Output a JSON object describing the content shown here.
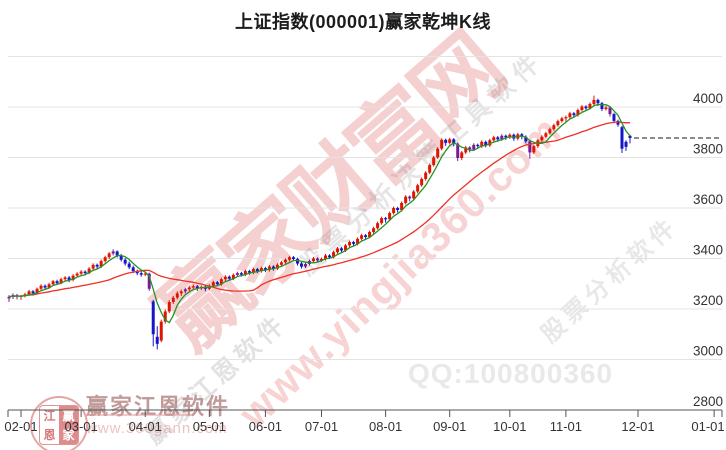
{
  "title": "上证指数(000001)赢家乾坤K线",
  "watermarks": {
    "brand_large": "赢家财富网",
    "site_url": "www.yingjia360.com",
    "qq": "QQ:100800360",
    "gray_line_1": "赢家江恩软件",
    "gray_line_2": "股票分析决策工具软件",
    "gray_line_3": "股票分析软件",
    "footer_logo_text": "赢家江恩软件",
    "footer_logo_url": "www.360gann.com",
    "seal_chars": [
      "江",
      "赢",
      "恩",
      "家"
    ]
  },
  "chart_data": {
    "type": "candlestick",
    "title": "上证指数(000001)赢家乾坤K线",
    "symbol": "000001",
    "ylim": [
      2800,
      4214
    ],
    "y_axis": {
      "tick_labels": [
        "4000",
        "3800",
        "3600",
        "3400",
        "3200",
        "3000",
        "2800"
      ],
      "tick_values": [
        4000,
        3800,
        3600,
        3400,
        3200,
        3000,
        2800
      ],
      "gridline_values": [
        4200,
        4000,
        3800,
        3600,
        3400,
        3200,
        3000
      ]
    },
    "x_axis": {
      "ticks": [
        {
          "label": "02-01",
          "i": 3
        },
        {
          "label": "03-01",
          "i": 18
        },
        {
          "label": "04-01",
          "i": 34
        },
        {
          "label": "05-01",
          "i": 50
        },
        {
          "label": "06-01",
          "i": 64
        },
        {
          "label": "07-01",
          "i": 78
        },
        {
          "label": "08-01",
          "i": 94
        },
        {
          "label": "09-01",
          "i": 110
        },
        {
          "label": "10-01",
          "i": 125
        },
        {
          "label": "11-01",
          "i": 139
        },
        {
          "label": "12-01",
          "i": 157
        },
        {
          "label": "01-01",
          "i": 176
        }
      ]
    },
    "last_price_line": 3877,
    "ma_short_period": 5,
    "ma_long_period": 26,
    "colors": {
      "up": "#e01400",
      "down": "#1616c8",
      "special": "#7a1b96",
      "ma_short": "#269326",
      "ma_long": "#f03024",
      "gridline": "#e3e3e3",
      "axis": "#555555",
      "label": "#333333",
      "last_price_dash": "#1a1a1a"
    },
    "candles": [
      [
        3242,
        3255,
        3228,
        3248,
        1
      ],
      [
        3248,
        3262,
        3240,
        3255,
        1
      ],
      [
        3255,
        3260,
        3238,
        3250,
        1
      ],
      [
        3250,
        3256,
        3236,
        3252
      ],
      [
        3252,
        3264,
        3246,
        3258
      ],
      [
        3258,
        3276,
        3252,
        3270
      ],
      [
        3270,
        3275,
        3253,
        3262
      ],
      [
        3262,
        3285,
        3258,
        3280
      ],
      [
        3280,
        3298,
        3274,
        3292
      ],
      [
        3292,
        3297,
        3276,
        3285
      ],
      [
        3285,
        3304,
        3280,
        3298
      ],
      [
        3298,
        3315,
        3292,
        3310
      ],
      [
        3310,
        3316,
        3295,
        3302
      ],
      [
        3302,
        3324,
        3298,
        3318
      ],
      [
        3318,
        3330,
        3310,
        3325
      ],
      [
        3325,
        3331,
        3306,
        3315
      ],
      [
        3315,
        3338,
        3310,
        3332
      ],
      [
        3332,
        3346,
        3325,
        3340
      ],
      [
        3340,
        3354,
        3332,
        3348
      ],
      [
        3348,
        3353,
        3334,
        3342
      ],
      [
        3342,
        3366,
        3338,
        3360
      ],
      [
        3360,
        3381,
        3354,
        3375
      ],
      [
        3375,
        3380,
        3358,
        3368
      ],
      [
        3368,
        3396,
        3362,
        3390
      ],
      [
        3390,
        3411,
        3384,
        3405
      ],
      [
        3405,
        3426,
        3398,
        3420
      ],
      [
        3420,
        3436,
        3412,
        3428,
        1
      ],
      [
        3428,
        3432,
        3404,
        3412
      ],
      [
        3412,
        3418,
        3388,
        3395
      ],
      [
        3395,
        3402,
        3372,
        3380
      ],
      [
        3380,
        3388,
        3358,
        3365
      ],
      [
        3365,
        3372,
        3342,
        3350
      ],
      [
        3350,
        3356,
        3334,
        3342
      ],
      [
        3342,
        3350,
        3328,
        3336
      ],
      [
        3336,
        3348,
        3330,
        3340
      ],
      [
        3340,
        3344,
        3272,
        3280,
        1
      ],
      [
        3230,
        3236,
        3052,
        3100
      ],
      [
        3090,
        3132,
        3040,
        3062
      ],
      [
        3075,
        3158,
        3068,
        3150
      ],
      [
        3150,
        3198,
        3142,
        3190
      ],
      [
        3190,
        3235,
        3184,
        3228
      ],
      [
        3228,
        3252,
        3220,
        3245
      ],
      [
        3245,
        3270,
        3238,
        3262
      ],
      [
        3262,
        3277,
        3252,
        3270
      ],
      [
        3270,
        3284,
        3262,
        3278,
        1
      ],
      [
        3278,
        3292,
        3270,
        3285
      ],
      [
        3285,
        3297,
        3278,
        3290
      ],
      [
        3290,
        3295,
        3272,
        3282
      ],
      [
        3282,
        3294,
        3275,
        3288
      ],
      [
        3288,
        3293,
        3270,
        3280
      ],
      [
        3280,
        3298,
        3274,
        3292
      ],
      [
        3292,
        3312,
        3286,
        3306
      ],
      [
        3306,
        3311,
        3290,
        3298
      ],
      [
        3298,
        3324,
        3292,
        3318
      ],
      [
        3318,
        3334,
        3310,
        3328
      ],
      [
        3328,
        3333,
        3312,
        3320
      ],
      [
        3320,
        3341,
        3314,
        3335
      ],
      [
        3335,
        3348,
        3328,
        3342,
        1
      ],
      [
        3342,
        3347,
        3328,
        3336
      ],
      [
        3336,
        3356,
        3330,
        3350
      ],
      [
        3350,
        3355,
        3336,
        3344
      ],
      [
        3344,
        3364,
        3338,
        3358
      ],
      [
        3358,
        3363,
        3342,
        3350
      ],
      [
        3350,
        3368,
        3344,
        3362
      ],
      [
        3362,
        3367,
        3346,
        3355
      ],
      [
        3355,
        3374,
        3348,
        3368
      ],
      [
        3368,
        3373,
        3352,
        3360
      ],
      [
        3360,
        3381,
        3354,
        3375
      ],
      [
        3375,
        3391,
        3368,
        3385
      ],
      [
        3385,
        3401,
        3378,
        3395
      ],
      [
        3395,
        3411,
        3388,
        3405
      ],
      [
        3405,
        3410,
        3390,
        3398
      ],
      [
        3398,
        3403,
        3372,
        3380
      ],
      [
        3380,
        3386,
        3360,
        3368
      ],
      [
        3368,
        3384,
        3362,
        3378,
        1
      ],
      [
        3378,
        3396,
        3372,
        3390,
        1
      ],
      [
        3390,
        3406,
        3384,
        3400
      ],
      [
        3400,
        3405,
        3384,
        3392,
        1
      ],
      [
        3392,
        3404,
        3386,
        3398
      ],
      [
        3398,
        3418,
        3392,
        3412
      ],
      [
        3412,
        3417,
        3398,
        3405
      ],
      [
        3405,
        3431,
        3400,
        3425
      ],
      [
        3425,
        3446,
        3418,
        3440
      ],
      [
        3440,
        3445,
        3424,
        3432
      ],
      [
        3432,
        3458,
        3426,
        3452
      ],
      [
        3452,
        3471,
        3446,
        3465
      ],
      [
        3465,
        3470,
        3448,
        3458
      ],
      [
        3458,
        3484,
        3452,
        3478
      ],
      [
        3478,
        3498,
        3472,
        3492
      ],
      [
        3492,
        3497,
        3476,
        3485
      ],
      [
        3485,
        3511,
        3480,
        3505
      ],
      [
        3505,
        3526,
        3498,
        3520
      ],
      [
        3520,
        3546,
        3514,
        3540
      ],
      [
        3540,
        3566,
        3534,
        3560
      ],
      [
        3560,
        3565,
        3542,
        3555
      ],
      [
        3555,
        3586,
        3548,
        3580
      ],
      [
        3580,
        3606,
        3574,
        3600
      ],
      [
        3600,
        3605,
        3582,
        3592
      ],
      [
        3592,
        3626,
        3586,
        3620
      ],
      [
        3620,
        3651,
        3614,
        3645
      ],
      [
        3645,
        3650,
        3626,
        3638,
        1
      ],
      [
        3638,
        3671,
        3632,
        3665
      ],
      [
        3665,
        3696,
        3658,
        3690
      ],
      [
        3690,
        3721,
        3684,
        3715
      ],
      [
        3715,
        3746,
        3708,
        3740
      ],
      [
        3740,
        3776,
        3734,
        3770
      ],
      [
        3770,
        3806,
        3764,
        3800
      ],
      [
        3800,
        3841,
        3794,
        3835
      ],
      [
        3835,
        3876,
        3828,
        3870
      ],
      [
        3870,
        3875,
        3846,
        3858
      ],
      [
        3858,
        3878,
        3852,
        3872
      ],
      [
        3872,
        3877,
        3844,
        3855
      ],
      [
        3855,
        3860,
        3786,
        3798,
        1
      ],
      [
        3798,
        3826,
        3790,
        3820
      ],
      [
        3820,
        3846,
        3814,
        3840
      ],
      [
        3840,
        3845,
        3820,
        3832,
        1
      ],
      [
        3832,
        3856,
        3826,
        3850,
        1
      ],
      [
        3850,
        3855,
        3834,
        3845
      ],
      [
        3845,
        3868,
        3838,
        3862
      ],
      [
        3862,
        3867,
        3840,
        3848
      ],
      [
        3848,
        3874,
        3842,
        3868
      ],
      [
        3868,
        3886,
        3860,
        3880
      ],
      [
        3880,
        3885,
        3862,
        3872
      ],
      [
        3872,
        3892,
        3866,
        3886,
        1
      ],
      [
        3886,
        3891,
        3870,
        3880
      ],
      [
        3880,
        3896,
        3874,
        3890
      ],
      [
        3890,
        3895,
        3866,
        3875
      ],
      [
        3875,
        3898,
        3868,
        3892
      ],
      [
        3892,
        3897,
        3872,
        3882
      ],
      [
        3882,
        3888,
        3856,
        3864
      ],
      [
        3864,
        3870,
        3795,
        3820,
        1
      ],
      [
        3820,
        3851,
        3814,
        3845
      ],
      [
        3845,
        3874,
        3838,
        3868
      ],
      [
        3868,
        3888,
        3862,
        3882
      ],
      [
        3882,
        3902,
        3876,
        3896
      ],
      [
        3896,
        3918,
        3890,
        3912
      ],
      [
        3912,
        3934,
        3906,
        3928
      ],
      [
        3928,
        3950,
        3922,
        3944
      ],
      [
        3944,
        3961,
        3938,
        3955
      ],
      [
        3955,
        3966,
        3942,
        3960
      ],
      [
        3960,
        3981,
        3954,
        3975
      ],
      [
        3975,
        3980,
        3958,
        3968
      ],
      [
        3968,
        3994,
        3962,
        3988
      ],
      [
        3988,
        4008,
        3982,
        4002
      ],
      [
        4002,
        4007,
        3984,
        3995
      ],
      [
        3995,
        4018,
        3990,
        4012
      ],
      [
        4012,
        4045,
        4006,
        4028
      ],
      [
        4028,
        4033,
        4004,
        4015
      ],
      [
        4015,
        4020,
        3984,
        3992
      ],
      [
        3992,
        4004,
        3986,
        3998
      ],
      [
        3998,
        4003,
        3962,
        3972,
        1
      ],
      [
        3972,
        3977,
        3936,
        3945
      ],
      [
        3945,
        3950,
        3922,
        3930
      ],
      [
        3920,
        3925,
        3818,
        3835
      ],
      [
        3862,
        3868,
        3826,
        3842
      ],
      [
        3886,
        3890,
        3856,
        3877
      ]
    ]
  }
}
